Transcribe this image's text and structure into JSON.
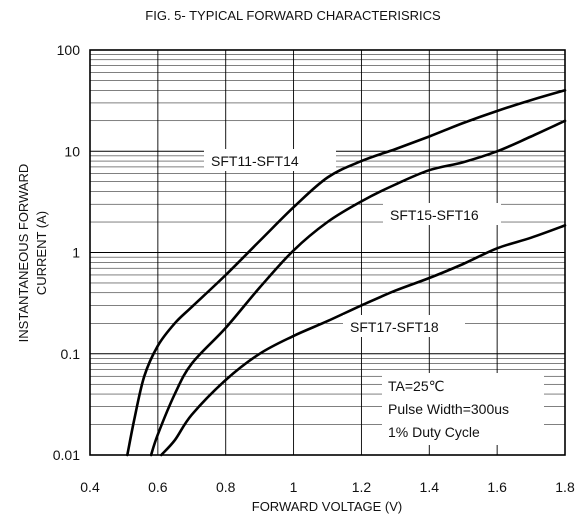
{
  "chart_data": {
    "type": "line",
    "title": "FIG. 5- TYPICAL FORWARD CHARACTERISRICS",
    "xlabel": "FORWARD VOLTAGE (V)",
    "ylabel_line1": "INSTANTANEOUS FORWARD",
    "ylabel_line2": "CURRENT (A)",
    "xlim": [
      0.4,
      1.8
    ],
    "ylim": [
      0.01,
      100
    ],
    "y_scale": "log",
    "grid": true,
    "x_ticks": [
      {
        "value": 0.4,
        "label": "0.4"
      },
      {
        "value": 0.6,
        "label": "0.6"
      },
      {
        "value": 0.8,
        "label": "0.8"
      },
      {
        "value": 1.0,
        "label": "1"
      },
      {
        "value": 1.2,
        "label": "1.2"
      },
      {
        "value": 1.4,
        "label": "1.4"
      },
      {
        "value": 1.6,
        "label": "1.6"
      },
      {
        "value": 1.8,
        "label": "1.8"
      }
    ],
    "y_ticks": [
      {
        "value": 100,
        "label": "100"
      },
      {
        "value": 10,
        "label": "10"
      },
      {
        "value": 1,
        "label": "1"
      },
      {
        "value": 0.1,
        "label": "0.1"
      },
      {
        "value": 0.01,
        "label": "0.01"
      }
    ],
    "series": [
      {
        "name": "SFT11-SFT14",
        "x": [
          0.51,
          0.53,
          0.56,
          0.6,
          0.65,
          0.7,
          0.8,
          0.9,
          1.0,
          1.1,
          1.2,
          1.3,
          1.4,
          1.5,
          1.6,
          1.7,
          1.8
        ],
        "y": [
          0.01,
          0.022,
          0.06,
          0.12,
          0.2,
          0.29,
          0.6,
          1.3,
          2.8,
          5.5,
          8,
          10.5,
          14,
          19,
          25,
          32,
          40
        ]
      },
      {
        "name": "SFT15-SFT16",
        "x": [
          0.58,
          0.6,
          0.65,
          0.7,
          0.8,
          0.9,
          1.0,
          1.1,
          1.2,
          1.3,
          1.4,
          1.5,
          1.6,
          1.7,
          1.8
        ],
        "y": [
          0.01,
          0.016,
          0.04,
          0.08,
          0.18,
          0.45,
          1.05,
          2.0,
          3.2,
          4.7,
          6.5,
          7.8,
          10,
          14,
          20
        ]
      },
      {
        "name": "SFT17-SFT18",
        "x": [
          0.61,
          0.65,
          0.7,
          0.8,
          0.9,
          1.0,
          1.1,
          1.2,
          1.3,
          1.4,
          1.5,
          1.6,
          1.7,
          1.8
        ],
        "y": [
          0.01,
          0.014,
          0.025,
          0.055,
          0.1,
          0.15,
          0.21,
          0.3,
          0.42,
          0.56,
          0.77,
          1.1,
          1.4,
          1.85
        ]
      }
    ],
    "annotations": [
      "TA=25℃",
      "Pulse Width=300us",
      "1% Duty Cycle"
    ]
  }
}
